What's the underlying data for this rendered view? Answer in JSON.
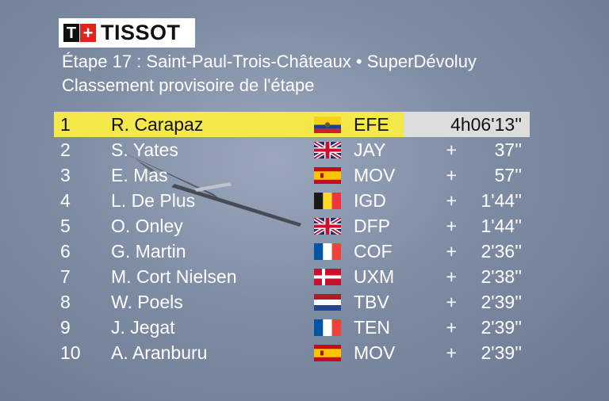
{
  "logo": {
    "mark_letter": "T",
    "mark_cross": "+",
    "brand": "TISSOT"
  },
  "header": {
    "stage_line": "Étape 17 : Saint-Paul-Trois-Châteaux • SuperDévoluy",
    "classification_line": "Classement provisoire de l'étape"
  },
  "colors": {
    "leader_row": "#f5e84b",
    "leader_time_bg": "#dddddd",
    "logo_red": "#e2231a"
  },
  "results": [
    {
      "rank": "1",
      "rider": "R. Carapaz",
      "flag": "ecuador-flag",
      "team": "EFE",
      "time": "4h06'13''"
    },
    {
      "rank": "2",
      "rider": "S. Yates",
      "flag": "uk-flag",
      "team": "JAY",
      "plus": "+",
      "gap": "37''"
    },
    {
      "rank": "3",
      "rider": "E. Mas",
      "flag": "spain-flag",
      "team": "MOV",
      "plus": "+",
      "gap": "57''"
    },
    {
      "rank": "4",
      "rider": "L. De Plus",
      "flag": "belgium-flag",
      "team": "IGD",
      "plus": "+",
      "gap": "1'44''"
    },
    {
      "rank": "5",
      "rider": "O. Onley",
      "flag": "uk-flag",
      "team": "DFP",
      "plus": "+",
      "gap": "1'44''"
    },
    {
      "rank": "6",
      "rider": "G. Martin",
      "flag": "france-flag",
      "team": "COF",
      "plus": "+",
      "gap": "2'36''"
    },
    {
      "rank": "7",
      "rider": "M. Cort Nielsen",
      "flag": "denmark-flag",
      "team": "UXM",
      "plus": "+",
      "gap": "2'38''"
    },
    {
      "rank": "8",
      "rider": "W. Poels",
      "flag": "netherlands-flag",
      "team": "TBV",
      "plus": "+",
      "gap": "2'39''"
    },
    {
      "rank": "9",
      "rider": "J. Jegat",
      "flag": "france-flag",
      "team": "TEN",
      "plus": "+",
      "gap": "2'39''"
    },
    {
      "rank": "10",
      "rider": "A. Aranburu",
      "flag": "spain-flag",
      "team": "MOV",
      "plus": "+",
      "gap": "2'39''"
    }
  ]
}
